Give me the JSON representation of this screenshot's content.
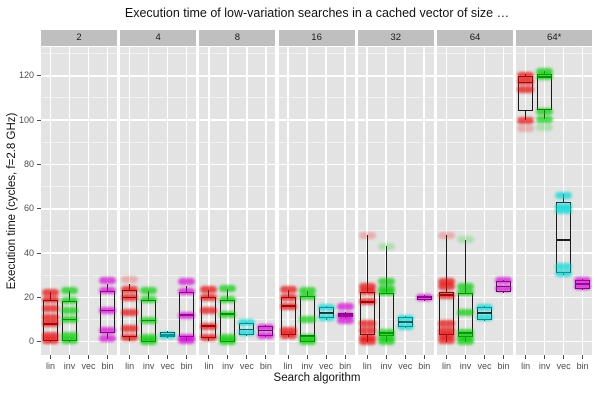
{
  "chart_data": {
    "type": "boxplot",
    "title": "Execution time of low-variation searches in a cached vector of size …",
    "xlabel": "Search algorithm",
    "ylabel": "Execution time (cycles, f=2.8 GHz)",
    "legend": "none",
    "grid": "major and minor white gridlines on gray panels",
    "y_ticks": [
      0,
      20,
      40,
      60,
      80,
      100,
      120
    ],
    "y_minor_step": 10,
    "ylim": [
      -6,
      133
    ],
    "categories": [
      "lin",
      "inv",
      "vec",
      "bin"
    ],
    "colors": {
      "lin": "#e60000",
      "inv": "#00cc00",
      "vec": "#00d6d6",
      "bin": "#d400d4"
    },
    "facets": [
      {
        "label": "2",
        "boxes": [
          {
            "alg": "lin",
            "q1": 0.5,
            "med": 8,
            "q3": 19,
            "wlo": 0,
            "whi": 22.5,
            "points": [
              22,
              19,
              15,
              11,
              8,
              3,
              0.5
            ],
            "faint": []
          },
          {
            "alg": "inv",
            "q1": 0.5,
            "med": 10,
            "q3": 18.5,
            "wlo": 0,
            "whi": 23,
            "points": [
              23,
              18.5,
              14,
              10,
              3,
              0.5
            ],
            "faint": []
          },
          null,
          {
            "alg": "bin",
            "q1": 4,
            "med": 14,
            "q3": 23,
            "wlo": 1,
            "whi": 26,
            "points": [
              27.5,
              23,
              14,
              5,
              1.5
            ],
            "faint": []
          }
        ]
      },
      {
        "label": "4",
        "boxes": [
          {
            "alg": "lin",
            "q1": 2,
            "med": 20,
            "q3": 23.5,
            "wlo": 0.5,
            "whi": 26,
            "points": [
              23.5,
              20,
              13,
              6,
              2
            ],
            "faint": [
              28
            ]
          },
          {
            "alg": "inv",
            "q1": 0,
            "med": 9.5,
            "q3": 19,
            "wlo": 0,
            "whi": 23,
            "points": [
              23,
              19,
              9.5,
              2,
              0
            ],
            "faint": []
          },
          {
            "alg": "vec",
            "q1": 2,
            "med": 3,
            "q3": 4.5,
            "wlo": 1.5,
            "whi": 5,
            "points": [
              3
            ],
            "faint": []
          },
          {
            "alg": "bin",
            "q1": 2,
            "med": 12,
            "q3": 22.5,
            "wlo": 0.5,
            "whi": 25,
            "points": [
              27,
              22.5,
              12,
              2,
              0.5
            ],
            "faint": []
          }
        ]
      },
      {
        "label": "8",
        "boxes": [
          {
            "alg": "lin",
            "q1": 1.5,
            "med": 7,
            "q3": 20,
            "wlo": 0.5,
            "whi": 23.5,
            "points": [
              23.5,
              20,
              14,
              7,
              2
            ],
            "faint": []
          },
          {
            "alg": "inv",
            "q1": 0,
            "med": 12.5,
            "q3": 19,
            "wlo": 0,
            "whi": 24,
            "points": [
              24,
              19,
              12.5,
              2,
              0
            ],
            "faint": []
          },
          {
            "alg": "vec",
            "q1": 3,
            "med": 5.5,
            "q3": 8.5,
            "wlo": 2.5,
            "whi": 9,
            "points": [
              8.5,
              4
            ],
            "faint": []
          },
          {
            "alg": "bin",
            "q1": 2.5,
            "med": 5,
            "q3": 7,
            "wlo": 2,
            "whi": 7.5,
            "points": [
              6.5,
              3
            ],
            "faint": []
          }
        ]
      },
      {
        "label": "16",
        "boxes": [
          {
            "alg": "lin",
            "q1": 3,
            "med": 16,
            "q3": 20,
            "wlo": 2,
            "whi": 23.5,
            "points": [
              23.5,
              20,
              16,
              5,
              3
            ],
            "faint": []
          },
          {
            "alg": "inv",
            "q1": 0,
            "med": 2.5,
            "q3": 20.5,
            "wlo": 0,
            "whi": 23,
            "points": [
              23,
              20.5,
              10,
              2,
              0
            ],
            "faint": []
          },
          {
            "alg": "vec",
            "q1": 10.5,
            "med": 13,
            "q3": 15.5,
            "wlo": 10,
            "whi": 16,
            "points": [
              15.5,
              11
            ],
            "faint": []
          },
          {
            "alg": "bin",
            "q1": 11,
            "med": 12,
            "q3": 13,
            "wlo": 10.5,
            "whi": 13.5,
            "points": [
              16,
              12,
              9.5
            ],
            "faint": []
          }
        ]
      },
      {
        "label": "32",
        "boxes": [
          {
            "alg": "lin",
            "q1": 3,
            "med": 18,
            "q3": 22.5,
            "wlo": 0,
            "whi": 48,
            "points": [
              25,
              22.5,
              18,
              8,
              5,
              2,
              0
            ],
            "faint": [
              48
            ]
          },
          {
            "alg": "inv",
            "q1": 2.5,
            "med": 4,
            "q3": 22,
            "wlo": 0,
            "whi": 43,
            "points": [
              27,
              24,
              22,
              4,
              2,
              0
            ],
            "faint": [
              43
            ]
          },
          {
            "alg": "vec",
            "q1": 6.5,
            "med": 9,
            "q3": 11,
            "wlo": 6,
            "whi": 11.5,
            "points": [
              10.5,
              7
            ],
            "faint": []
          },
          {
            "alg": "bin",
            "q1": 19,
            "med": 20,
            "q3": 20.5,
            "wlo": 18.5,
            "whi": 21,
            "points": [
              20
            ],
            "faint": []
          }
        ]
      },
      {
        "label": "64",
        "boxes": [
          {
            "alg": "lin",
            "q1": 3,
            "med": 21,
            "q3": 22.5,
            "wlo": 0,
            "whi": 48,
            "points": [
              27,
              25,
              21,
              8,
              5,
              3,
              0.5
            ],
            "faint": [
              48
            ]
          },
          {
            "alg": "inv",
            "q1": 2,
            "med": 4,
            "q3": 22,
            "wlo": 0,
            "whi": 46,
            "points": [
              25,
              22,
              13,
              4,
              2,
              0
            ],
            "faint": [
              46
            ]
          },
          {
            "alg": "vec",
            "q1": 10,
            "med": 13,
            "q3": 15.5,
            "wlo": 9.5,
            "whi": 16,
            "points": [
              15.5,
              11
            ],
            "faint": []
          },
          {
            "alg": "bin",
            "q1": 22.5,
            "med": 25,
            "q3": 27.5,
            "wlo": 22,
            "whi": 28,
            "points": [
              27.5,
              24
            ],
            "faint": []
          }
        ]
      },
      {
        "label": "64*",
        "boxes": [
          {
            "alg": "lin",
            "q1": 104,
            "med": 117,
            "q3": 120,
            "wlo": 100,
            "whi": 121,
            "points": [
              120,
              117.5,
              114,
              100
            ],
            "faint": [
              96
            ]
          },
          {
            "alg": "inv",
            "q1": 104.5,
            "med": 119.5,
            "q3": 121,
            "wlo": 100.5,
            "whi": 122,
            "points": [
              122,
              119.5,
              104,
              100.5
            ],
            "faint": [
              96.5
            ]
          },
          {
            "alg": "vec",
            "q1": 31,
            "med": 46,
            "q3": 63,
            "wlo": 30,
            "whi": 66.5,
            "points": [
              66,
              61,
              59,
              34,
              31
            ],
            "faint": []
          },
          {
            "alg": "bin",
            "q1": 24,
            "med": 26,
            "q3": 28,
            "wlo": 23.5,
            "whi": 28.5,
            "points": [
              27.5,
              25
            ],
            "faint": []
          }
        ]
      }
    ]
  }
}
